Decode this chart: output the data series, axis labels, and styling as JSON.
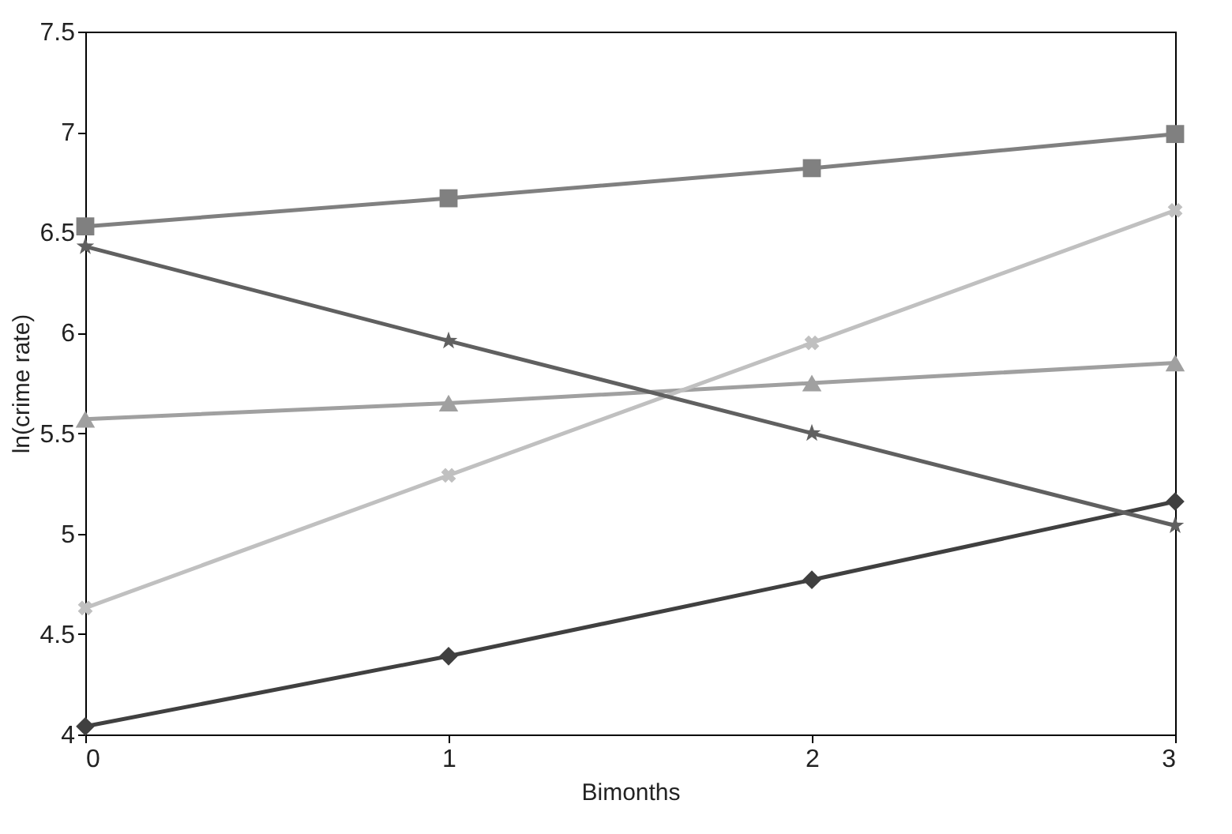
{
  "chart_data": {
    "type": "line",
    "xlabel": "Bimonths",
    "ylabel": "ln(crime rate)",
    "x": [
      0,
      1,
      2,
      3
    ],
    "xlim": [
      0,
      3
    ],
    "xticks": [
      0,
      1,
      2,
      3
    ],
    "ylim": [
      4,
      7.5
    ],
    "yticks": [
      4,
      4.5,
      5,
      5.5,
      6,
      6.5,
      7,
      7.5
    ],
    "grid": false,
    "series": [
      {
        "color": "#404040",
        "marker": "diamond",
        "values": [
          4.04,
          4.39,
          4.77,
          5.16
        ]
      },
      {
        "color": "#808080",
        "marker": "square",
        "values": [
          6.53,
          6.67,
          6.82,
          6.99
        ]
      },
      {
        "color": "#a0a0a0",
        "marker": "triangle",
        "values": [
          5.57,
          5.65,
          5.75,
          5.85
        ]
      },
      {
        "color": "#c0c0c0",
        "marker": "cross",
        "values": [
          4.63,
          5.29,
          5.95,
          6.61
        ]
      },
      {
        "color": "#606060",
        "marker": "star",
        "values": [
          6.43,
          5.96,
          5.5,
          5.04
        ]
      }
    ]
  }
}
